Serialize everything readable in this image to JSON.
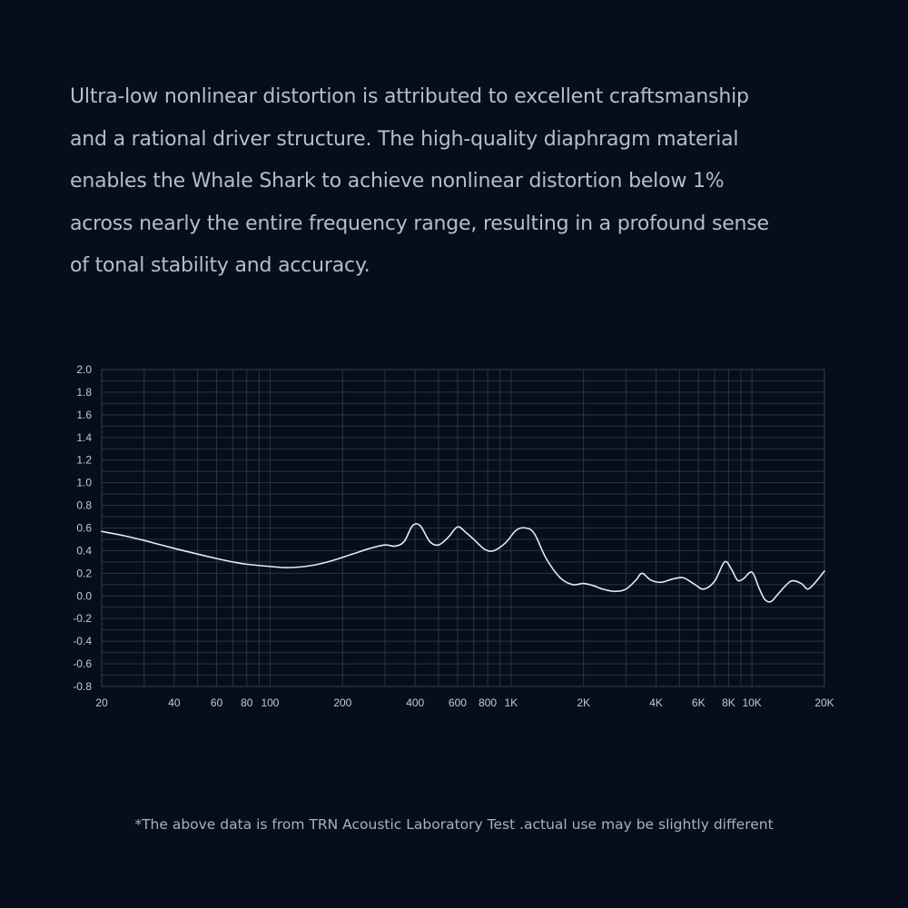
{
  "description": {
    "lines": [
      "Ultra-low nonlinear distortion is attributed to excellent craftsmanship",
      "and a rational driver structure. The high-quality diaphragm material",
      "enables the Whale Shark to achieve nonlinear distortion below 1%",
      "across nearly the entire frequency range, resulting in a profound sense",
      "of tonal stability and accuracy."
    ]
  },
  "footnote": "*The above data is from TRN Acoustic Laboratory Test .actual use may be slightly different",
  "chart_data": {
    "type": "line",
    "title": "",
    "xlabel": "",
    "ylabel": "",
    "x_scale": "log",
    "xlim": [
      20,
      20000
    ],
    "ylim": [
      -0.8,
      2.0
    ],
    "grid": true,
    "x_tick_values": [
      20,
      40,
      60,
      80,
      100,
      200,
      400,
      600,
      800,
      1000,
      2000,
      4000,
      6000,
      8000,
      10000,
      20000
    ],
    "x_tick_labels": [
      "20",
      "40",
      "60",
      "80",
      "100",
      "200",
      "400",
      "600",
      "800",
      "1K",
      "2K",
      "4K",
      "6K",
      "8K",
      "10K",
      "20K"
    ],
    "y_tick_values": [
      2.0,
      1.8,
      1.6,
      1.4,
      1.2,
      1.0,
      0.8,
      0.6,
      0.4,
      0.2,
      0.0,
      -0.2,
      -0.4,
      -0.6,
      -0.8
    ],
    "y_tick_labels": [
      "2.0",
      "1.8",
      "1.6",
      "1.4",
      "1.2",
      "1.0",
      "0.8",
      "0.6",
      "0.4",
      "0.2",
      "0.0",
      "-0.2",
      "-0.4",
      "-0.6",
      "-0.8"
    ],
    "colors": {
      "background": "#060e1c",
      "grid": "#2a3446",
      "line": "#e6e9ee"
    },
    "series": [
      {
        "x": [
          20,
          25,
          30,
          40,
          50,
          60,
          70,
          80,
          100,
          120,
          150,
          180,
          220,
          260,
          300,
          330,
          360,
          390,
          420,
          460,
          500,
          550,
          600,
          650,
          700,
          780,
          850,
          950,
          1050,
          1150,
          1250,
          1400,
          1600,
          1800,
          2000,
          2200,
          2400,
          2700,
          3000,
          3300,
          3500,
          3800,
          4200,
          4700,
          5200,
          5800,
          6300,
          7000,
          7700,
          8200,
          8700,
          9200,
          10000,
          10700,
          11300,
          12000,
          13000,
          14500,
          16000,
          17000,
          18000,
          19000,
          20000
        ],
        "y": [
          0.57,
          0.53,
          0.49,
          0.42,
          0.37,
          0.33,
          0.3,
          0.28,
          0.26,
          0.25,
          0.27,
          0.31,
          0.37,
          0.42,
          0.45,
          0.44,
          0.48,
          0.62,
          0.62,
          0.48,
          0.45,
          0.52,
          0.61,
          0.56,
          0.5,
          0.41,
          0.4,
          0.47,
          0.58,
          0.6,
          0.55,
          0.33,
          0.16,
          0.1,
          0.11,
          0.09,
          0.06,
          0.04,
          0.06,
          0.14,
          0.2,
          0.14,
          0.12,
          0.15,
          0.16,
          0.1,
          0.06,
          0.13,
          0.3,
          0.24,
          0.14,
          0.15,
          0.21,
          0.07,
          -0.03,
          -0.05,
          0.03,
          0.13,
          0.11,
          0.06,
          0.1,
          0.16,
          0.22
        ]
      }
    ]
  }
}
